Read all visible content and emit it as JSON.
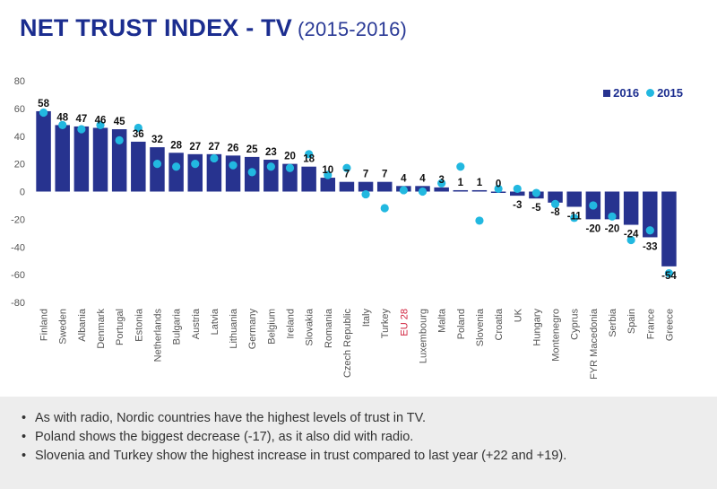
{
  "title": {
    "main": "NET TRUST INDEX - TV",
    "sub": "(2015-2016)"
  },
  "legend": {
    "series_2016": "2016",
    "series_2015": "2015"
  },
  "colors": {
    "bar_2016": "#27338f",
    "dot_2015": "#22b8e0",
    "highlight_label": "#d0213d",
    "title": "#1b2d8f"
  },
  "chart_data": {
    "type": "bar",
    "categories": [
      "Finland",
      "Sweden",
      "Albania",
      "Denmark",
      "Portugal",
      "Estonia",
      "Netherlands",
      "Bulgaria",
      "Austria",
      "Latvia",
      "Lithuania",
      "Germany",
      "Belgium",
      "Ireland",
      "Slovakia",
      "Romania",
      "Czech Republic",
      "Italy",
      "Turkey",
      "EU 28",
      "Luxembourg",
      "Malta",
      "Poland",
      "Slovenia",
      "Croatia",
      "UK",
      "Hungary",
      "Montenegro",
      "Cyprus",
      "FYR Macedonia",
      "Serbia",
      "Spain",
      "France",
      "Greece"
    ],
    "highlight_category": "EU 28",
    "series": [
      {
        "name": "2016",
        "kind": "bar",
        "values": [
          58,
          48,
          47,
          46,
          45,
          36,
          32,
          28,
          27,
          27,
          26,
          25,
          23,
          20,
          18,
          10,
          7,
          7,
          7,
          4,
          4,
          3,
          1,
          1,
          0,
          -3,
          -5,
          -8,
          -11,
          -20,
          -20,
          -24,
          -33,
          -54
        ]
      },
      {
        "name": "2015",
        "kind": "dot",
        "values": [
          57,
          48,
          45,
          48,
          37,
          46,
          20,
          18,
          20,
          24,
          19,
          14,
          18,
          17,
          27,
          12,
          17,
          -2,
          -12,
          1,
          0,
          6,
          18,
          -21,
          2,
          2,
          -1,
          -9,
          -19,
          -10,
          -18,
          -35,
          -28,
          -59
        ]
      }
    ],
    "data_labels": [
      "58",
      "48",
      "47",
      "46",
      "45",
      "36",
      "32",
      "28",
      "27",
      "27",
      "26",
      "25",
      "23",
      "20",
      "18",
      "10",
      "7",
      "7",
      "7",
      "4",
      "4",
      "3",
      "1",
      "1",
      "0",
      "-3",
      "-5",
      "-8",
      "-11",
      "-20",
      "-20",
      "-24",
      "-33",
      "-54"
    ],
    "yticks": [
      "80",
      "60",
      "40",
      "20",
      "0",
      "-20",
      "-40",
      "-60",
      "-80"
    ],
    "ylim": [
      -80,
      80
    ],
    "grid": false,
    "legend_position": "top-right"
  },
  "notes": [
    "As with radio, Nordic countries have the highest levels of trust in TV.",
    "Poland shows the biggest decrease (-17), as it also did with radio.",
    "Slovenia and Turkey show the highest increase in trust compared to last year (+22 and +19)."
  ]
}
